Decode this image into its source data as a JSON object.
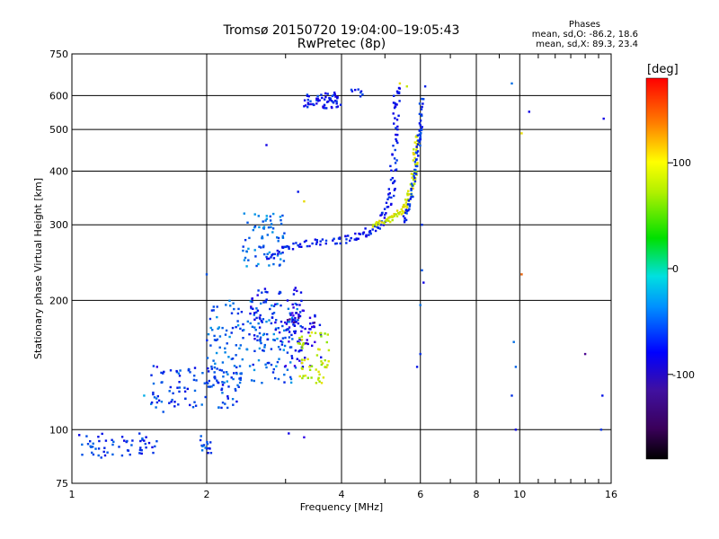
{
  "header": {
    "title_line1": "Tromsø 20150720 19:04:00–19:05:43",
    "title_line2": "RwPretec (8p)"
  },
  "stats": {
    "heading": "Phases",
    "line_o": "mean, sd,O: -86.2, 18.6",
    "line_x": "mean, sd,X:  89.3, 23.4"
  },
  "colorbar": {
    "label": "[deg]",
    "ticks": [
      {
        "value": 100,
        "label": "100"
      },
      {
        "value": 0,
        "label": "0"
      },
      {
        "value": -100,
        "label": "-100"
      }
    ],
    "range": [
      -180,
      180
    ],
    "colormap": "rainbow"
  },
  "chart_data": {
    "type": "scatter",
    "xlabel": "Frequency [MHz]",
    "ylabel": "Stationary phase Virtual Height [km]",
    "xscale": "log",
    "yscale": "log",
    "xlim": [
      1,
      16
    ],
    "ylim": [
      75,
      750
    ],
    "xticks": [
      1,
      2,
      4,
      6,
      8,
      10,
      16
    ],
    "xtick_labels": [
      "1",
      "2",
      "4",
      "6",
      "8",
      "10",
      "16"
    ],
    "xgrid": [
      2,
      4,
      6,
      8,
      10
    ],
    "yticks": [
      75,
      100,
      200,
      300,
      400,
      500,
      600,
      750
    ],
    "ytick_labels": [
      "75",
      "100",
      "200",
      "300",
      "400",
      "500",
      "600",
      "750"
    ],
    "ygrid": [
      100,
      200,
      300,
      400,
      500,
      600
    ],
    "grid": true,
    "color_by": "phase [deg]",
    "clusters": [
      {
        "x": [
          1.0,
          1.55
        ],
        "y": [
          86,
          98
        ],
        "phase": -100,
        "n": 60
      },
      {
        "x": [
          1.9,
          2.05
        ],
        "y": [
          88,
          97
        ],
        "phase": -95,
        "n": 15
      },
      {
        "x": [
          1.5,
          2.4
        ],
        "y": [
          112,
          142
        ],
        "phase": -95,
        "n": 110
      },
      {
        "x": [
          2.0,
          3.2
        ],
        "y": [
          128,
          200
        ],
        "phase": -85,
        "n": 170
      },
      {
        "x": [
          2.5,
          3.3
        ],
        "y": [
          160,
          215
        ],
        "phase": -110,
        "n": 80
      },
      {
        "x": [
          3.0,
          3.6
        ],
        "y": [
          140,
          190
        ],
        "phase": -125,
        "n": 60
      },
      {
        "x": [
          3.2,
          3.75
        ],
        "y": [
          128,
          170
        ],
        "phase": 95,
        "n": 55
      },
      {
        "x": [
          2.4,
          3.0
        ],
        "y": [
          240,
          320
        ],
        "phase": -80,
        "n": 70
      },
      {
        "x": [
          3.3,
          4.0
        ],
        "y": [
          560,
          610
        ],
        "phase": -110,
        "n": 60
      },
      {
        "x": [
          4.2,
          4.5
        ],
        "y": [
          580,
          620
        ],
        "phase": -105,
        "n": 8
      }
    ],
    "traces": [
      {
        "points": [
          [
            2.75,
            252
          ],
          [
            3.0,
            265
          ],
          [
            3.4,
            272
          ],
          [
            3.9,
            275
          ],
          [
            4.3,
            280
          ],
          [
            4.6,
            290
          ],
          [
            4.9,
            300
          ],
          [
            5.1,
            330
          ],
          [
            5.2,
            380
          ],
          [
            5.25,
            460
          ],
          [
            5.3,
            560
          ],
          [
            5.32,
            630
          ]
        ],
        "phase": -110,
        "spread": 0.035
      },
      {
        "points": [
          [
            4.7,
            298
          ],
          [
            5.0,
            305
          ],
          [
            5.3,
            315
          ],
          [
            5.55,
            330
          ],
          [
            5.7,
            355
          ],
          [
            5.8,
            390
          ],
          [
            5.85,
            440
          ],
          [
            5.9,
            490
          ]
        ],
        "phase": 100,
        "spread": 0.03
      },
      {
        "points": [
          [
            5.5,
            305
          ],
          [
            5.7,
            340
          ],
          [
            5.85,
            400
          ],
          [
            5.95,
            470
          ],
          [
            6.0,
            500
          ],
          [
            6.05,
            600
          ]
        ],
        "phase": -100,
        "spread": 0.02
      }
    ],
    "points": [
      {
        "x": 2.72,
        "y": 460,
        "phase": -120
      },
      {
        "x": 3.2,
        "y": 358,
        "phase": -110
      },
      {
        "x": 3.3,
        "y": 340,
        "phase": 110
      },
      {
        "x": 6.15,
        "y": 630,
        "phase": -105
      },
      {
        "x": 6.05,
        "y": 300,
        "phase": -100
      },
      {
        "x": 6.05,
        "y": 235,
        "phase": -90
      },
      {
        "x": 6.1,
        "y": 220,
        "phase": -120
      },
      {
        "x": 6.0,
        "y": 195,
        "phase": -80
      },
      {
        "x": 6.0,
        "y": 150,
        "phase": -100
      },
      {
        "x": 5.9,
        "y": 140,
        "phase": -110
      },
      {
        "x": 3.05,
        "y": 98,
        "phase": -120
      },
      {
        "x": 3.3,
        "y": 96,
        "phase": -130
      },
      {
        "x": 9.6,
        "y": 640,
        "phase": -80
      },
      {
        "x": 9.7,
        "y": 160,
        "phase": -80
      },
      {
        "x": 9.8,
        "y": 140,
        "phase": -85
      },
      {
        "x": 9.6,
        "y": 120,
        "phase": -100
      },
      {
        "x": 9.8,
        "y": 100,
        "phase": -120
      },
      {
        "x": 10.1,
        "y": 490,
        "phase": 110
      },
      {
        "x": 10.1,
        "y": 230,
        "phase": 150
      },
      {
        "x": 10.5,
        "y": 550,
        "phase": -120
      },
      {
        "x": 14.0,
        "y": 150,
        "phase": -140
      },
      {
        "x": 15.4,
        "y": 530,
        "phase": -120
      },
      {
        "x": 15.3,
        "y": 120,
        "phase": -110
      },
      {
        "x": 15.2,
        "y": 100,
        "phase": -100
      },
      {
        "x": 1.55,
        "y": 140,
        "phase": -130
      },
      {
        "x": 1.45,
        "y": 120,
        "phase": -60
      },
      {
        "x": 1.6,
        "y": 110,
        "phase": -90
      },
      {
        "x": 2.0,
        "y": 230,
        "phase": -90
      },
      {
        "x": 5.4,
        "y": 640,
        "phase": 110
      },
      {
        "x": 5.6,
        "y": 630,
        "phase": 95
      }
    ]
  }
}
